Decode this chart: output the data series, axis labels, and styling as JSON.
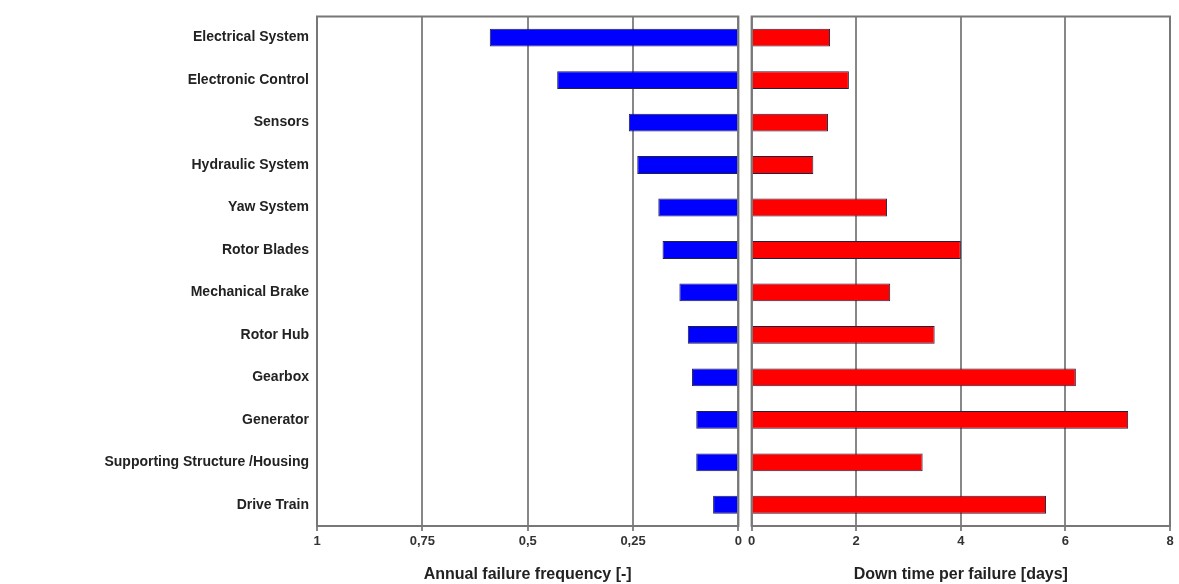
{
  "chart_data": [
    {
      "type": "bar",
      "orientation": "horizontal",
      "categories": [
        "Electrical System",
        "Electronic Control",
        "Sensors",
        "Hydraulic System",
        "Yaw System",
        "Rotor Blades",
        "Mechanical Brake",
        "Rotor Hub",
        "Gearbox",
        "Generator",
        "Supporting Structure /Housing",
        "Drive Train"
      ],
      "values": [
        0.59,
        0.43,
        0.26,
        0.24,
        0.19,
        0.18,
        0.14,
        0.12,
        0.11,
        0.1,
        0.1,
        0.06
      ],
      "color": "#0000ff",
      "xlim": [
        1,
        0
      ],
      "xticks": [
        1,
        {
          "value": 0.75,
          "label": "0,75"
        },
        {
          "value": 0.5,
          "label": "0,5"
        },
        {
          "value": 0.25,
          "label": "0,25"
        },
        0
      ],
      "xlabel": "Annual failure frequency [-]",
      "grid": "x"
    },
    {
      "type": "bar",
      "orientation": "horizontal",
      "categories": [
        null,
        null,
        null,
        null,
        null,
        null,
        null,
        null,
        null,
        null,
        null,
        null
      ],
      "values": [
        1.5,
        1.86,
        1.46,
        1.18,
        2.59,
        4.0,
        2.65,
        3.5,
        6.2,
        7.2,
        3.27,
        5.63
      ],
      "color": "#ff0000",
      "xlim": [
        0,
        8
      ],
      "xticks": [
        0,
        2,
        4,
        6,
        8
      ],
      "xlabel": "Down time per failure [days]",
      "grid": "x",
      "tick_labels": "x"
    }
  ]
}
